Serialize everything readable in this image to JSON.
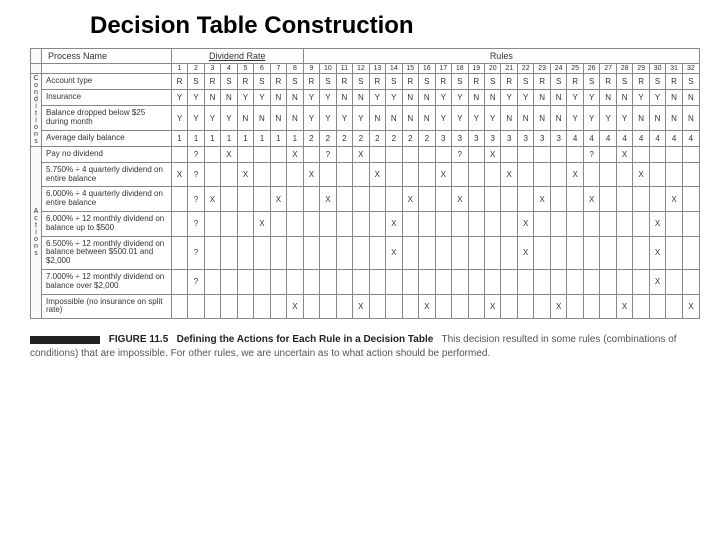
{
  "title": "Decision Table Construction",
  "header": {
    "process_name": "Process Name",
    "dividend_rate": "Dividend Rate",
    "rules": "Rules"
  },
  "side_labels": {
    "conditions": "Conditions",
    "actions": "Actions"
  },
  "rule_numbers": [
    "1",
    "2",
    "3",
    "4",
    "5",
    "6",
    "7",
    "8",
    "9",
    "10",
    "11",
    "12",
    "13",
    "14",
    "15",
    "16",
    "17",
    "18",
    "19",
    "20",
    "21",
    "22",
    "23",
    "24",
    "25",
    "26",
    "27",
    "28",
    "29",
    "30",
    "31",
    "32"
  ],
  "conditions": [
    {
      "label": "Account type",
      "values": [
        "R",
        "S",
        "R",
        "S",
        "R",
        "S",
        "R",
        "S",
        "R",
        "S",
        "R",
        "S",
        "R",
        "S",
        "R",
        "S",
        "R",
        "S",
        "R",
        "S",
        "R",
        "S",
        "R",
        "S",
        "R",
        "S",
        "R",
        "S",
        "R",
        "S",
        "R",
        "S"
      ]
    },
    {
      "label": "Insurance",
      "values": [
        "Y",
        "Y",
        "N",
        "N",
        "Y",
        "Y",
        "N",
        "N",
        "Y",
        "Y",
        "N",
        "N",
        "Y",
        "Y",
        "N",
        "N",
        "Y",
        "Y",
        "N",
        "N",
        "Y",
        "Y",
        "N",
        "N",
        "Y",
        "Y",
        "N",
        "N",
        "Y",
        "Y",
        "N",
        "N"
      ]
    },
    {
      "label": "Balance dropped below $25 during month",
      "values": [
        "Y",
        "Y",
        "Y",
        "Y",
        "N",
        "N",
        "N",
        "N",
        "Y",
        "Y",
        "Y",
        "Y",
        "N",
        "N",
        "N",
        "N",
        "Y",
        "Y",
        "Y",
        "Y",
        "N",
        "N",
        "N",
        "N",
        "Y",
        "Y",
        "Y",
        "Y",
        "N",
        "N",
        "N",
        "N"
      ]
    },
    {
      "label": "Average daily balance",
      "values": [
        "1",
        "1",
        "1",
        "1",
        "1",
        "1",
        "1",
        "1",
        "2",
        "2",
        "2",
        "2",
        "2",
        "2",
        "2",
        "2",
        "3",
        "3",
        "3",
        "3",
        "3",
        "3",
        "3",
        "3",
        "4",
        "4",
        "4",
        "4",
        "4",
        "4",
        "4",
        "4"
      ]
    }
  ],
  "actions": [
    {
      "label": "Pay no dividend",
      "values": [
        "",
        "?",
        "",
        "X",
        "",
        "",
        "",
        "X",
        "",
        "?",
        "",
        "X",
        "",
        "",
        "",
        "",
        "",
        "?",
        "",
        "X",
        "",
        "",
        "",
        "",
        "",
        "?",
        "",
        "X",
        "",
        "",
        "",
        ""
      ]
    },
    {
      "label": "5.750% ÷ 4 quarterly dividend on entire balance",
      "values": [
        "X",
        "?",
        "",
        "",
        "X",
        "",
        "",
        "",
        "X",
        "",
        "",
        "",
        "X",
        "",
        "",
        "",
        "X",
        "",
        "",
        "",
        "X",
        "",
        "",
        "",
        "X",
        "",
        "",
        "",
        "X",
        "",
        "",
        ""
      ]
    },
    {
      "label": "6.000% ÷ 4 quarterly dividend on entire balance",
      "values": [
        "",
        "?",
        "X",
        "",
        "",
        "",
        "X",
        "",
        "",
        "X",
        "",
        "",
        "",
        "",
        "X",
        "",
        "",
        "X",
        "",
        "",
        "",
        "",
        "X",
        "",
        "",
        "X",
        "",
        "",
        "",
        "",
        "X",
        ""
      ]
    },
    {
      "label": "6.000% ÷ 12 monthly dividend on balance up to $500",
      "values": [
        "",
        "?",
        "",
        "",
        "",
        "X",
        "",
        "",
        "",
        "",
        "",
        "",
        "",
        "X",
        "",
        "",
        "",
        "",
        "",
        "",
        "",
        "X",
        "",
        "",
        "",
        "",
        "",
        "",
        "",
        "X",
        "",
        ""
      ]
    },
    {
      "label": "6.500% ÷ 12 monthly dividend on balance between $500.01 and $2,000",
      "values": [
        "",
        "?",
        "",
        "",
        "",
        "",
        "",
        "",
        "",
        "",
        "",
        "",
        "",
        "X",
        "",
        "",
        "",
        "",
        "",
        "",
        "",
        "X",
        "",
        "",
        "",
        "",
        "",
        "",
        "",
        "X",
        "",
        ""
      ]
    },
    {
      "label": "7.000% ÷ 12 monthly dividend on balance over $2,000",
      "values": [
        "",
        "?",
        "",
        "",
        "",
        "",
        "",
        "",
        "",
        "",
        "",
        "",
        "",
        "",
        "",
        "",
        "",
        "",
        "",
        "",
        "",
        "",
        "",
        "",
        "",
        "",
        "",
        "",
        "",
        "X",
        "",
        ""
      ]
    },
    {
      "label": "Impossible (no insurance on split rate)",
      "values": [
        "",
        "",
        "",
        "",
        "",
        "",
        "",
        "X",
        "",
        "",
        "",
        "X",
        "",
        "",
        "",
        "X",
        "",
        "",
        "",
        "X",
        "",
        "",
        "",
        "X",
        "",
        "",
        "",
        "X",
        "",
        "",
        "",
        "X"
      ]
    }
  ],
  "caption": {
    "fig_label": "FIGURE 11.5",
    "fig_title": "Defining the Actions for Each Rule in a Decision Table",
    "text": "This decision resulted in some rules (combinations of conditions) that are impossible. For other rules, we are uncertain as to what action should be performed."
  },
  "style": {
    "page_bg": "#ffffff",
    "text_color": "#333333",
    "border_color": "#888888",
    "title_fontsize": 24,
    "table_fontsize": 8,
    "caption_fontsize": 10
  }
}
